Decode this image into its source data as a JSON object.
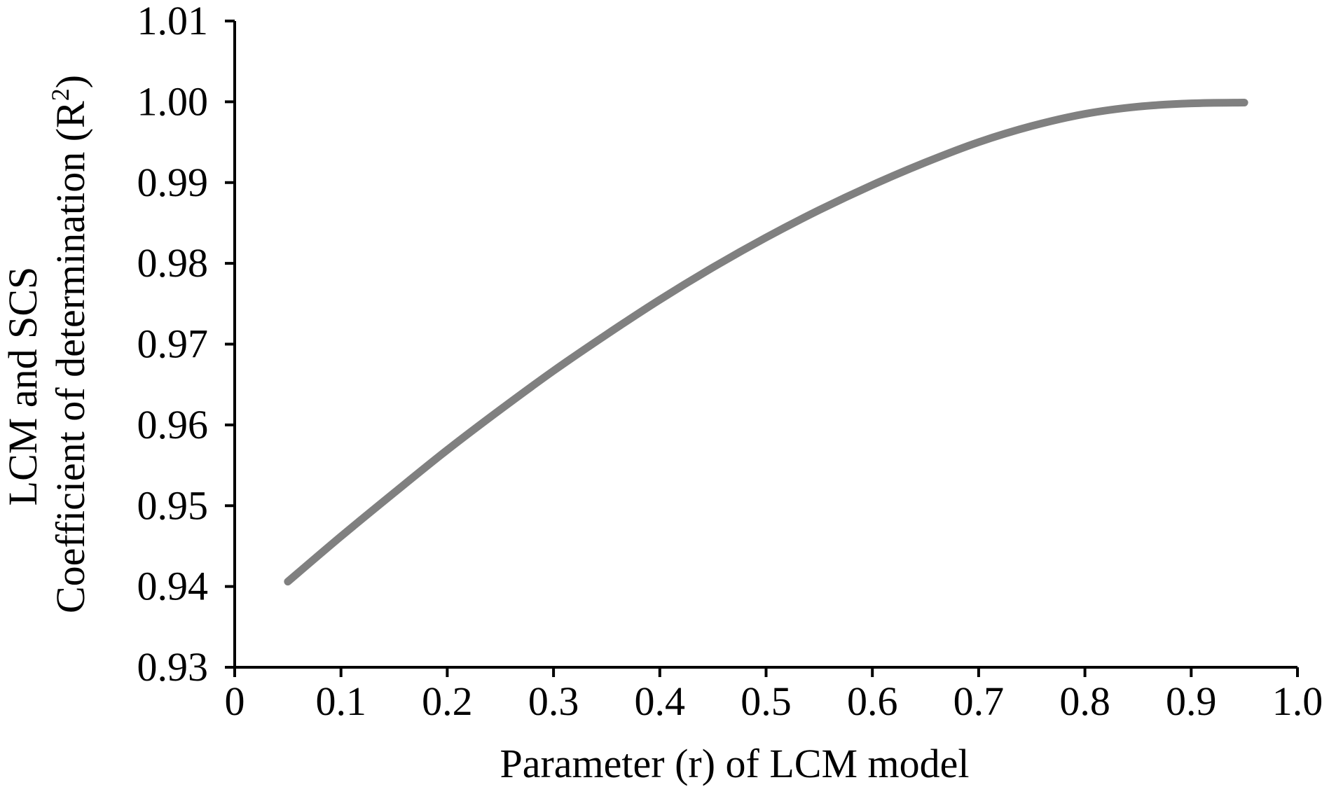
{
  "chart_data": {
    "type": "line",
    "xlabel": "Parameter (r) of LCM model",
    "ylabel_line1": "LCM and SCS",
    "ylabel_line2_main": "Coefficient of determination (R",
    "ylabel_line2_sup": "2",
    "ylabel_line2_end": ")",
    "xlim": [
      0,
      1.0
    ],
    "ylim": [
      0.93,
      1.01
    ],
    "x_ticks": [
      0,
      0.1,
      0.2,
      0.3,
      0.4,
      0.5,
      0.6,
      0.7,
      0.8,
      0.9,
      1.0
    ],
    "x_tick_labels": [
      "0",
      "0.1",
      "0.2",
      "0.3",
      "0.4",
      "0.5",
      "0.6",
      "0.7",
      "0.8",
      "0.9",
      "1.0"
    ],
    "y_ticks": [
      0.93,
      0.94,
      0.95,
      0.96,
      0.97,
      0.98,
      0.99,
      1.0,
      1.01
    ],
    "y_tick_labels": [
      "0.93",
      "0.94",
      "0.95",
      "0.96",
      "0.97",
      "0.98",
      "0.99",
      "1.00",
      "1.01"
    ],
    "grid": false,
    "legend": "none",
    "series": [
      {
        "color": "#808080",
        "x": [
          0.05,
          0.1,
          0.15,
          0.2,
          0.25,
          0.3,
          0.35,
          0.4,
          0.45,
          0.5,
          0.55,
          0.6,
          0.65,
          0.7,
          0.75,
          0.8,
          0.85,
          0.9,
          0.95
        ],
        "y": [
          0.9406,
          0.9462,
          0.9516,
          0.9569,
          0.9619,
          0.9667,
          0.9712,
          0.9755,
          0.9795,
          0.9832,
          0.9866,
          0.9897,
          0.9925,
          0.995,
          0.997,
          0.9985,
          0.9994,
          0.9998,
          0.9999
        ]
      }
    ]
  }
}
